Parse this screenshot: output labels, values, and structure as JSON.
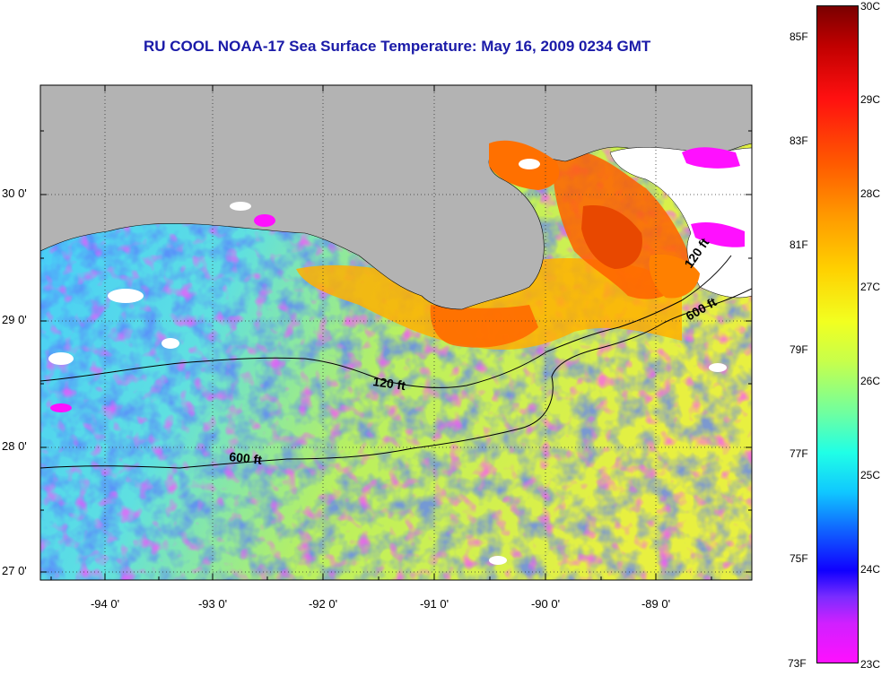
{
  "title": "RU COOL  NOAA-17  Sea Surface Temperature:  May 16, 2009 0234 GMT",
  "y_axis_labels": [
    "30 0'",
    "29 0'",
    "28 0'",
    "27 0'"
  ],
  "x_axis_labels": [
    "-94 0'",
    "-93 0'",
    "-92 0'",
    "-91 0'",
    "-90 0'",
    "-89 0'"
  ],
  "contour_labels": [
    "120 ft",
    "600 ft",
    "120 ft",
    "600 ft"
  ],
  "colorbar": {
    "fahrenheit": [
      "85F",
      "83F",
      "81F",
      "79F",
      "77F",
      "75F",
      "73F"
    ],
    "celsius": [
      "30C",
      "29C",
      "28C",
      "27C",
      "26C",
      "25C",
      "24C",
      "23C"
    ]
  },
  "colors": {
    "land": "#b3b3b3",
    "title": "#1a1aa8",
    "cloud": "#ffffff",
    "sst_cool": "#ff10ff",
    "sst_warm": "#ff5a00"
  }
}
